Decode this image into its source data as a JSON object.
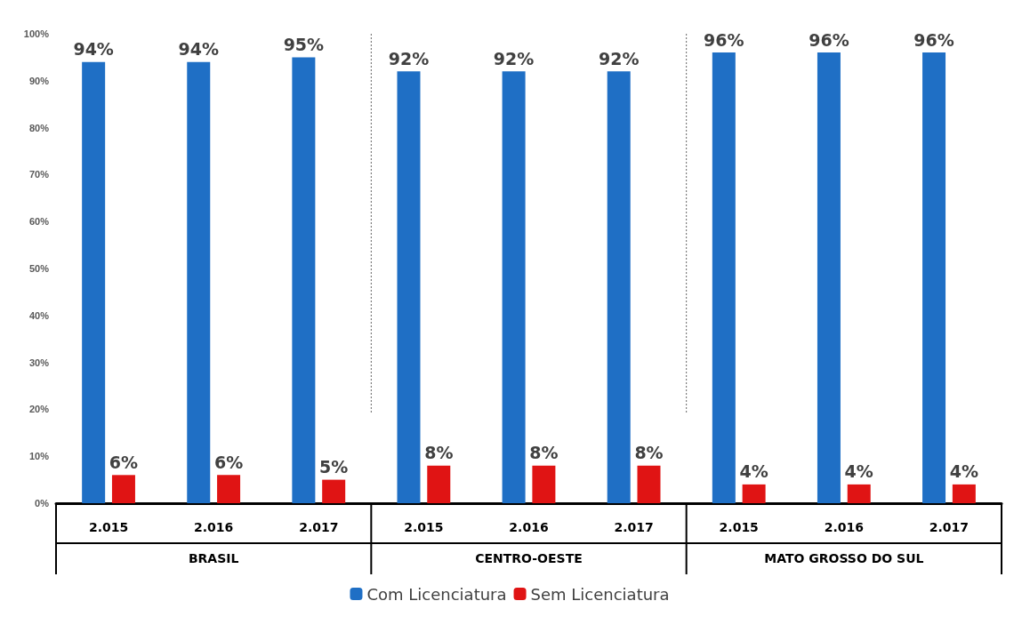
{
  "chart_data": {
    "type": "bar",
    "categories": [
      "2.015",
      "2.016",
      "2.017",
      "2.015",
      "2.016",
      "2.017",
      "2.015",
      "2.016",
      "2.017"
    ],
    "series": [
      {
        "name": "Com Licenciatura",
        "color": "#1f6fc5",
        "values": [
          94,
          94,
          95,
          92,
          92,
          92,
          96,
          96,
          96
        ],
        "value_labels": [
          "94%",
          "94%",
          "95%",
          "92%",
          "92%",
          "92%",
          "96%",
          "96%",
          "96%"
        ]
      },
      {
        "name": "Sem Licenciatura",
        "color": "#e01414",
        "values": [
          6,
          6,
          5,
          8,
          8,
          8,
          4,
          4,
          4
        ],
        "value_labels": [
          "6%",
          "6%",
          "5%",
          "8%",
          "8%",
          "8%",
          "4%",
          "4%",
          "4%"
        ]
      }
    ],
    "annotations": [
      "BRASIL",
      "CENTRO-OESTE",
      "MATO GROSSO DO SUL"
    ],
    "ylim": [
      0,
      100
    ],
    "yticks": [
      {
        "value": 0,
        "label": "0%"
      },
      {
        "value": 10,
        "label": "10%"
      },
      {
        "value": 20,
        "label": "20%"
      },
      {
        "value": 30,
        "label": "30%"
      },
      {
        "value": 40,
        "label": "40%"
      },
      {
        "value": 50,
        "label": "50%"
      },
      {
        "value": 60,
        "label": "60%"
      },
      {
        "value": 70,
        "label": "70%"
      },
      {
        "value": 80,
        "label": "80%"
      },
      {
        "value": 90,
        "label": "90%"
      },
      {
        "value": 100,
        "label": "100%"
      }
    ],
    "grid": false,
    "legend": "bottom"
  }
}
